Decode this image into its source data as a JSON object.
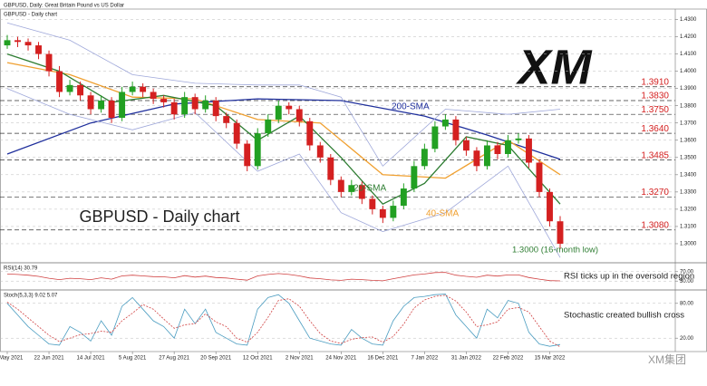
{
  "header": "GBPUSD, Daily:  Great Britain Pound vs US Dollar",
  "logo": "XM",
  "watermark": "XM集团",
  "chart_data": [
    {
      "type": "candlestick",
      "title": "GBPUSD - Daily chart",
      "categories": [
        "31 May 2021",
        null,
        null,
        null,
        "22 Jun 2021",
        null,
        null,
        null,
        "14 Jul 2021",
        null,
        null,
        null,
        "5 Aug 2021",
        null,
        null,
        null,
        "27 Aug 2021",
        null,
        null,
        null,
        "20 Sep 2021",
        null,
        null,
        null,
        "12 Oct 2021",
        null,
        null,
        null,
        "2 Nov 2021",
        null,
        null,
        null,
        "24 Nov 2021",
        null,
        null,
        null,
        "16 Dec 2021",
        null,
        null,
        null,
        "7 Jan 2022",
        null,
        null,
        null,
        "31 Jan 2022",
        null,
        null,
        null,
        "22 Feb 2022",
        null,
        null,
        null,
        "15 Mar 2022",
        null
      ],
      "open": [
        1.415,
        1.418,
        1.417,
        1.415,
        1.41,
        1.4,
        1.388,
        1.392,
        1.386,
        1.378,
        1.383,
        1.373,
        1.388,
        1.391,
        1.388,
        1.384,
        1.382,
        1.375,
        1.385,
        1.378,
        1.383,
        1.374,
        1.37,
        1.358,
        1.345,
        1.364,
        1.372,
        1.38,
        1.378,
        1.371,
        1.357,
        1.35,
        1.337,
        1.33,
        1.334,
        1.326,
        1.32,
        1.315,
        1.322,
        1.332,
        1.345,
        1.355,
        1.368,
        1.372,
        1.36,
        1.354,
        1.345,
        1.357,
        1.352,
        1.36,
        1.361,
        1.347,
        1.33,
        1.313
      ],
      "high": [
        1.421,
        1.42,
        1.419,
        1.417,
        1.412,
        1.403,
        1.395,
        1.394,
        1.388,
        1.386,
        1.385,
        1.391,
        1.394,
        1.393,
        1.39,
        1.386,
        1.384,
        1.388,
        1.387,
        1.386,
        1.385,
        1.376,
        1.372,
        1.36,
        1.367,
        1.375,
        1.383,
        1.382,
        1.38,
        1.373,
        1.359,
        1.352,
        1.339,
        1.337,
        1.336,
        1.328,
        1.322,
        1.325,
        1.335,
        1.348,
        1.358,
        1.371,
        1.375,
        1.374,
        1.362,
        1.356,
        1.36,
        1.359,
        1.363,
        1.364,
        1.363,
        1.349,
        1.332,
        1.316
      ],
      "low": [
        1.413,
        1.414,
        1.412,
        1.407,
        1.397,
        1.385,
        1.386,
        1.383,
        1.375,
        1.376,
        1.37,
        1.371,
        1.386,
        1.385,
        1.381,
        1.379,
        1.372,
        1.373,
        1.375,
        1.376,
        1.371,
        1.367,
        1.355,
        1.342,
        1.343,
        1.362,
        1.37,
        1.375,
        1.368,
        1.354,
        1.347,
        1.334,
        1.327,
        1.328,
        1.323,
        1.317,
        1.312,
        1.313,
        1.32,
        1.33,
        1.343,
        1.353,
        1.366,
        1.357,
        1.351,
        1.342,
        1.343,
        1.349,
        1.35,
        1.358,
        1.344,
        1.327,
        1.31,
        1.297
      ],
      "close": [
        1.418,
        1.417,
        1.415,
        1.41,
        1.4,
        1.388,
        1.392,
        1.386,
        1.378,
        1.383,
        1.373,
        1.388,
        1.391,
        1.388,
        1.384,
        1.382,
        1.375,
        1.385,
        1.378,
        1.383,
        1.374,
        1.37,
        1.358,
        1.345,
        1.364,
        1.372,
        1.38,
        1.378,
        1.371,
        1.357,
        1.35,
        1.337,
        1.33,
        1.334,
        1.326,
        1.32,
        1.315,
        1.322,
        1.332,
        1.345,
        1.355,
        1.368,
        1.372,
        1.36,
        1.354,
        1.345,
        1.357,
        1.352,
        1.36,
        1.361,
        1.347,
        1.33,
        1.313,
        1.3
      ],
      "up_color": "#22a022",
      "down_color": "#d42020",
      "ylim": [
        1.29,
        1.435
      ],
      "yticks": [
        {
          "value": 1.3,
          "label": "1.3000"
        },
        {
          "value": 1.31,
          "label": "1.3100"
        },
        {
          "value": 1.32,
          "label": "1.3200"
        },
        {
          "value": 1.33,
          "label": "1.3300"
        },
        {
          "value": 1.34,
          "label": "1.3400"
        },
        {
          "value": 1.35,
          "label": "1.3500"
        },
        {
          "value": 1.36,
          "label": "1.3600"
        },
        {
          "value": 1.37,
          "label": "1.3700"
        },
        {
          "value": 1.38,
          "label": "1.3800"
        },
        {
          "value": 1.39,
          "label": "1.3900"
        },
        {
          "value": 1.4,
          "label": "1.4000"
        },
        {
          "value": 1.41,
          "label": "1.4100"
        },
        {
          "value": 1.42,
          "label": "1.4200"
        },
        {
          "value": 1.43,
          "label": "1.4300"
        }
      ],
      "levels": [
        {
          "value": 1.391,
          "label": "1.3910"
        },
        {
          "value": 1.383,
          "label": "1.3830"
        },
        {
          "value": 1.375,
          "label": "1.3750"
        },
        {
          "value": 1.364,
          "label": "1.3640"
        },
        {
          "value": 1.3485,
          "label": "1.3485"
        },
        {
          "value": 1.327,
          "label": "1.3270"
        },
        {
          "value": 1.308,
          "label": "1.3080"
        }
      ],
      "level_color": "#d42020",
      "overlays": [
        {
          "name": "200-SMA",
          "color": "#1f2f9c",
          "x": [
            0,
            8,
            16,
            24,
            32,
            40,
            46,
            53
          ],
          "values": [
            1.352,
            1.37,
            1.381,
            1.384,
            1.383,
            1.374,
            1.363,
            1.349
          ]
        },
        {
          "name": "40-SMA",
          "color": "#f0a030",
          "x": [
            0,
            6,
            12,
            18,
            24,
            30,
            36,
            42,
            48,
            53
          ],
          "values": [
            1.405,
            1.398,
            1.385,
            1.384,
            1.372,
            1.37,
            1.34,
            1.338,
            1.36,
            1.34
          ]
        },
        {
          "name": "20-SMA",
          "color": "#2e7d32",
          "x": [
            0,
            5,
            10,
            15,
            20,
            24,
            28,
            32,
            36,
            40,
            44,
            48,
            53
          ],
          "values": [
            1.41,
            1.4,
            1.382,
            1.386,
            1.38,
            1.36,
            1.374,
            1.35,
            1.323,
            1.335,
            1.362,
            1.357,
            1.323
          ]
        },
        {
          "color": "#9fa8da",
          "x": [
            0,
            6,
            12,
            18,
            24,
            28,
            32,
            36,
            42,
            48,
            53
          ],
          "values": [
            1.428,
            1.418,
            1.398,
            1.393,
            1.392,
            1.392,
            1.385,
            1.345,
            1.378,
            1.375,
            1.378
          ]
        },
        {
          "color": "#9fa8da",
          "x": [
            0,
            6,
            12,
            18,
            24,
            28,
            32,
            36,
            42,
            48,
            53
          ],
          "values": [
            1.39,
            1.375,
            1.366,
            1.376,
            1.342,
            1.352,
            1.318,
            1.307,
            1.318,
            1.345,
            1.292
          ]
        }
      ],
      "annotation": "1.3000 (16-month low)",
      "annotation_color": "#2e7d32"
    },
    {
      "type": "line",
      "title": "RSI(14) 30.79",
      "annotation": "RSI ticks up in the oversold region",
      "ylim": [
        0,
        100
      ],
      "yticks": [
        {
          "value": 70,
          "label": "70.00"
        },
        {
          "value": 30,
          "label": "30.00"
        }
      ],
      "series": [
        {
          "color": "#d04040",
          "values": [
            60,
            58,
            55,
            50,
            42,
            36,
            42,
            40,
            36,
            44,
            38,
            52,
            55,
            52,
            49,
            48,
            44,
            53,
            47,
            51,
            45,
            43,
            38,
            34,
            52,
            58,
            62,
            58,
            52,
            43,
            40,
            35,
            33,
            38,
            36,
            33,
            31,
            40,
            48,
            56,
            60,
            66,
            67,
            55,
            50,
            46,
            55,
            51,
            56,
            56,
            45,
            38,
            32,
            30.79
          ]
        }
      ]
    },
    {
      "type": "line",
      "title": "Stoch(5,3,3) 9.02 5.07",
      "annotation": "Stochastic created bullish cross",
      "ylim": [
        0,
        100
      ],
      "yticks": [
        {
          "value": 80,
          "label": "80.00"
        },
        {
          "value": 20,
          "label": "20.00"
        }
      ],
      "series": [
        {
          "color": "#4a9cc0",
          "values": [
            80,
            60,
            40,
            25,
            10,
            8,
            40,
            30,
            15,
            50,
            25,
            75,
            90,
            70,
            50,
            40,
            20,
            70,
            45,
            70,
            30,
            20,
            10,
            8,
            70,
            90,
            95,
            80,
            50,
            20,
            15,
            10,
            8,
            35,
            20,
            10,
            8,
            50,
            75,
            90,
            92,
            95,
            96,
            60,
            40,
            20,
            70,
            55,
            85,
            80,
            30,
            10,
            6,
            9.02
          ]
        },
        {
          "color": "#d04040",
          "dash": true,
          "values": [
            82,
            70,
            55,
            40,
            25,
            14,
            20,
            26,
            28,
            32,
            30,
            50,
            63,
            78,
            70,
            53,
            37,
            43,
            45,
            62,
            48,
            40,
            20,
            13,
            30,
            56,
            85,
            88,
            75,
            50,
            28,
            15,
            11,
            18,
            21,
            22,
            13,
            23,
            44,
            72,
            86,
            92,
            94,
            84,
            65,
            40,
            43,
            48,
            70,
            73,
            65,
            40,
            15,
            5.07
          ]
        }
      ]
    }
  ]
}
